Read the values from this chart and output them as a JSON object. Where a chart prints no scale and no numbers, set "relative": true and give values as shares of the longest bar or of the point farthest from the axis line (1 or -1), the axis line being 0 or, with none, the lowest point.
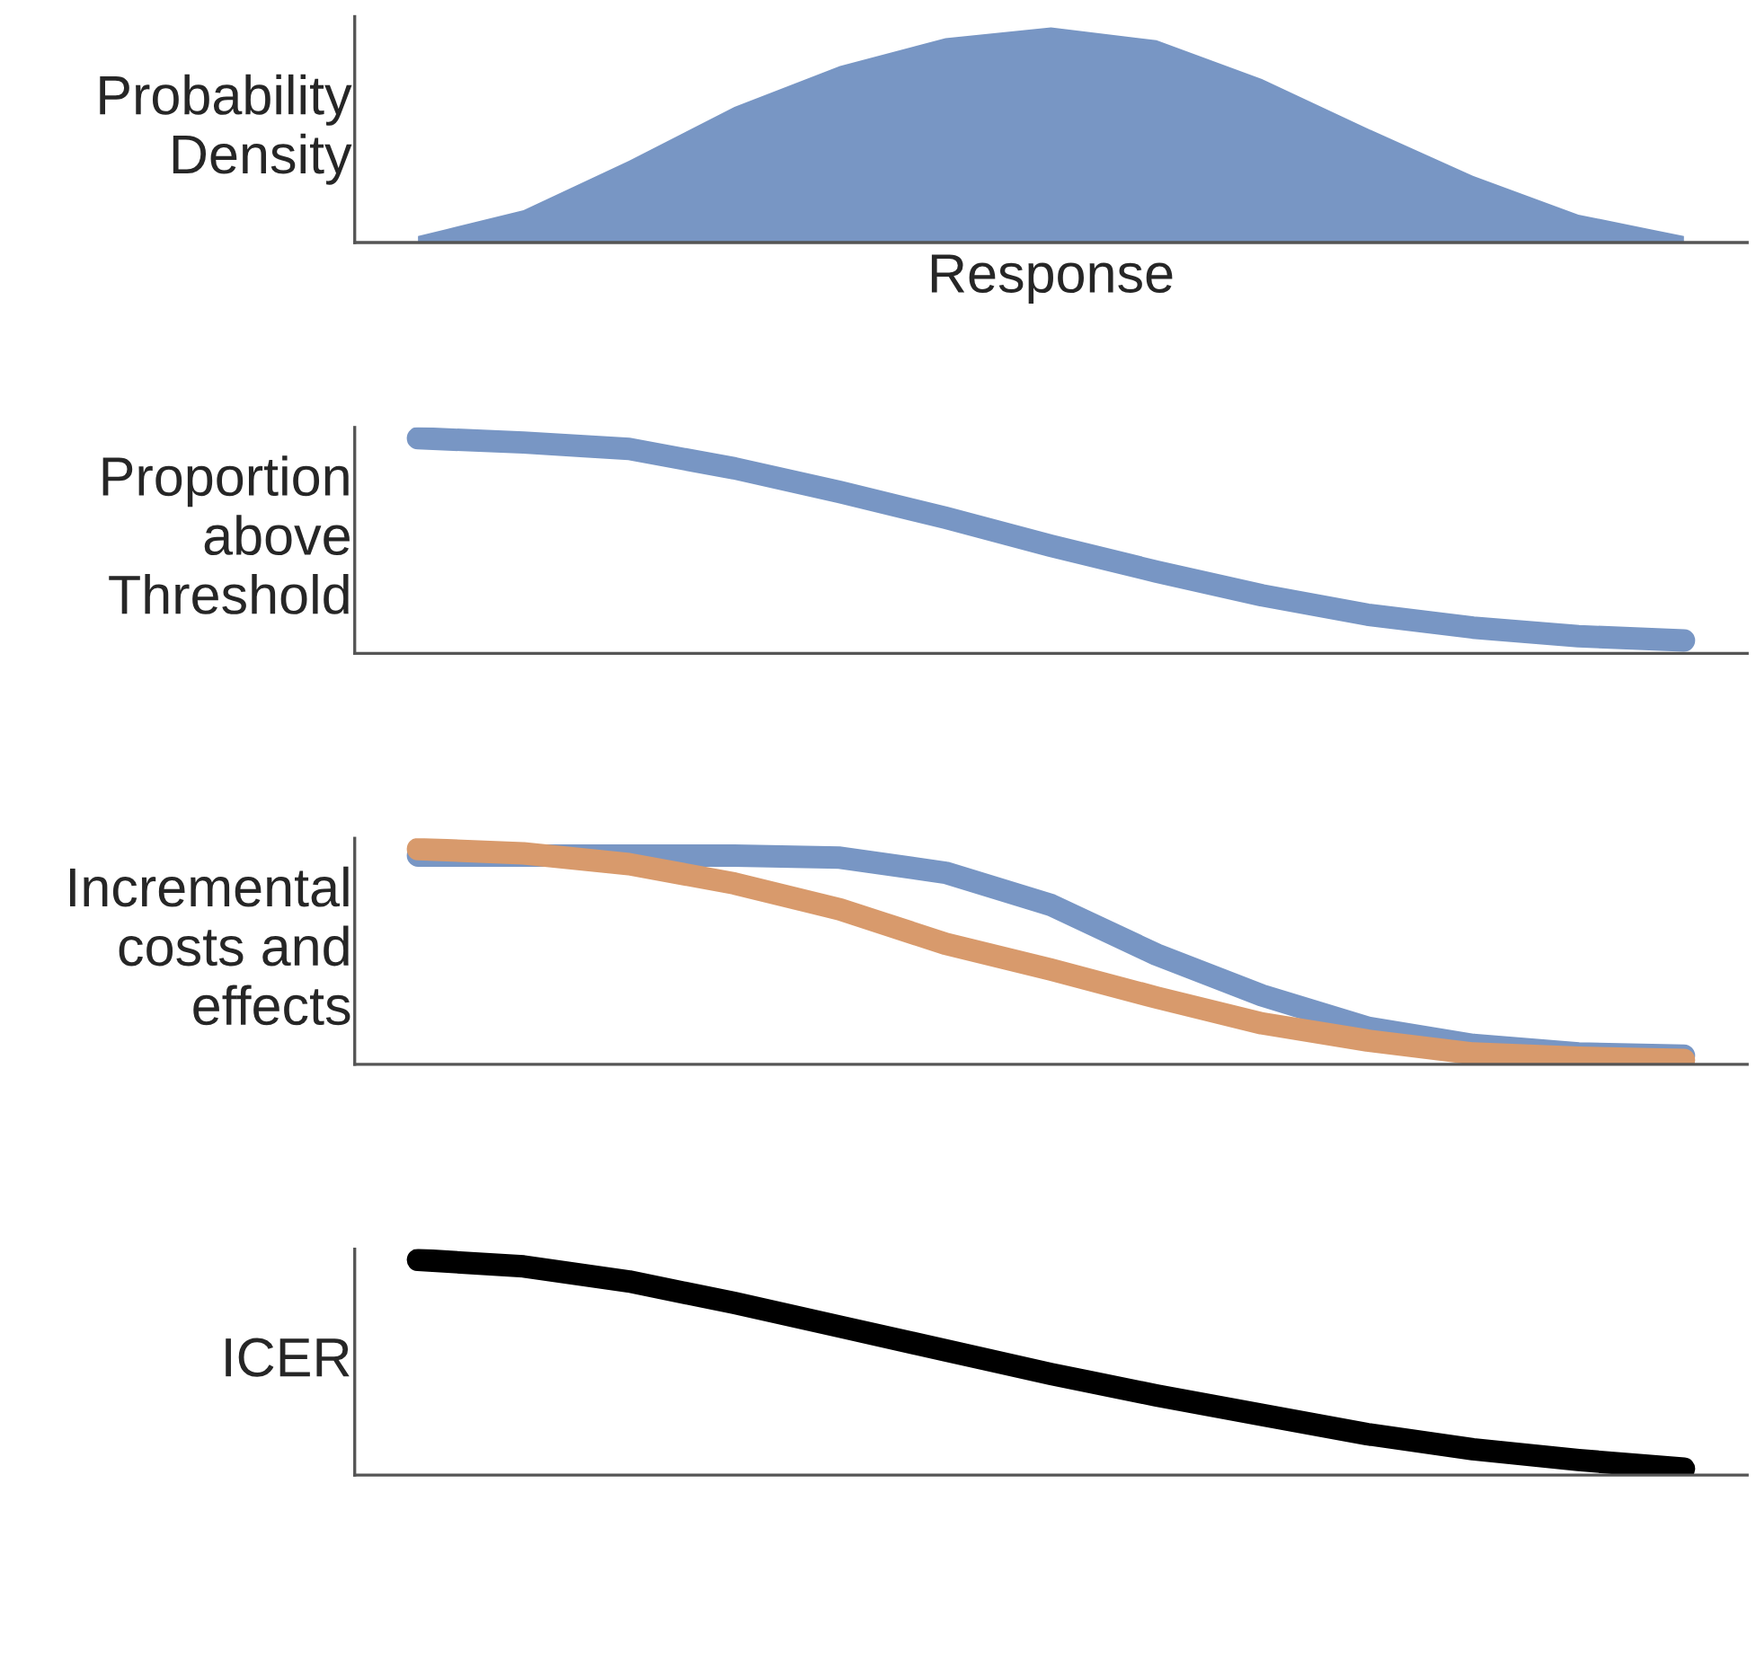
{
  "chart_data": [
    {
      "type": "area",
      "ylabel": "Probability\nDensity",
      "xlabel": "Response",
      "relative": true,
      "tick_labels": false,
      "categories": [
        null,
        null,
        null,
        null,
        null,
        null,
        null,
        null,
        null,
        null,
        null,
        null,
        null
      ],
      "color": "#7896c4",
      "values": [
        0.03,
        0.15,
        0.38,
        0.63,
        0.82,
        0.95,
        1.0,
        0.94,
        0.76,
        0.53,
        0.31,
        0.13,
        0.03
      ]
    },
    {
      "type": "line",
      "ylabel": "Proportion\nabove\nThreshold",
      "relative": true,
      "tick_labels": false,
      "categories": [
        null,
        null,
        null,
        null,
        null,
        null,
        null,
        null,
        null,
        null,
        null,
        null,
        null
      ],
      "color": "#7896c4",
      "values": [
        1.0,
        0.98,
        0.95,
        0.86,
        0.75,
        0.63,
        0.5,
        0.38,
        0.27,
        0.18,
        0.12,
        0.08,
        0.06
      ]
    },
    {
      "type": "line",
      "ylabel": "Incremental\ncosts and\neffects",
      "relative": true,
      "tick_labels": false,
      "categories": [
        null,
        null,
        null,
        null,
        null,
        null,
        null,
        null,
        null,
        null,
        null,
        null,
        null
      ],
      "series": [
        {
          "color": "#7896c4",
          "values": [
            0.97,
            0.97,
            0.97,
            0.97,
            0.96,
            0.89,
            0.74,
            0.51,
            0.32,
            0.17,
            0.09,
            0.05,
            0.04
          ]
        },
        {
          "color": "#d89a6c",
          "values": [
            1.0,
            0.98,
            0.93,
            0.84,
            0.72,
            0.56,
            0.44,
            0.31,
            0.19,
            0.11,
            0.05,
            0.03,
            0.02
          ]
        }
      ]
    },
    {
      "type": "line",
      "ylabel": "ICER",
      "relative": true,
      "tick_labels": false,
      "categories": [
        null,
        null,
        null,
        null,
        null,
        null,
        null,
        null,
        null,
        null,
        null,
        null,
        null
      ],
      "color": "#000000",
      "values": [
        1.0,
        0.97,
        0.9,
        0.8,
        0.69,
        0.58,
        0.47,
        0.37,
        0.28,
        0.19,
        0.12,
        0.07,
        0.03
      ]
    }
  ]
}
